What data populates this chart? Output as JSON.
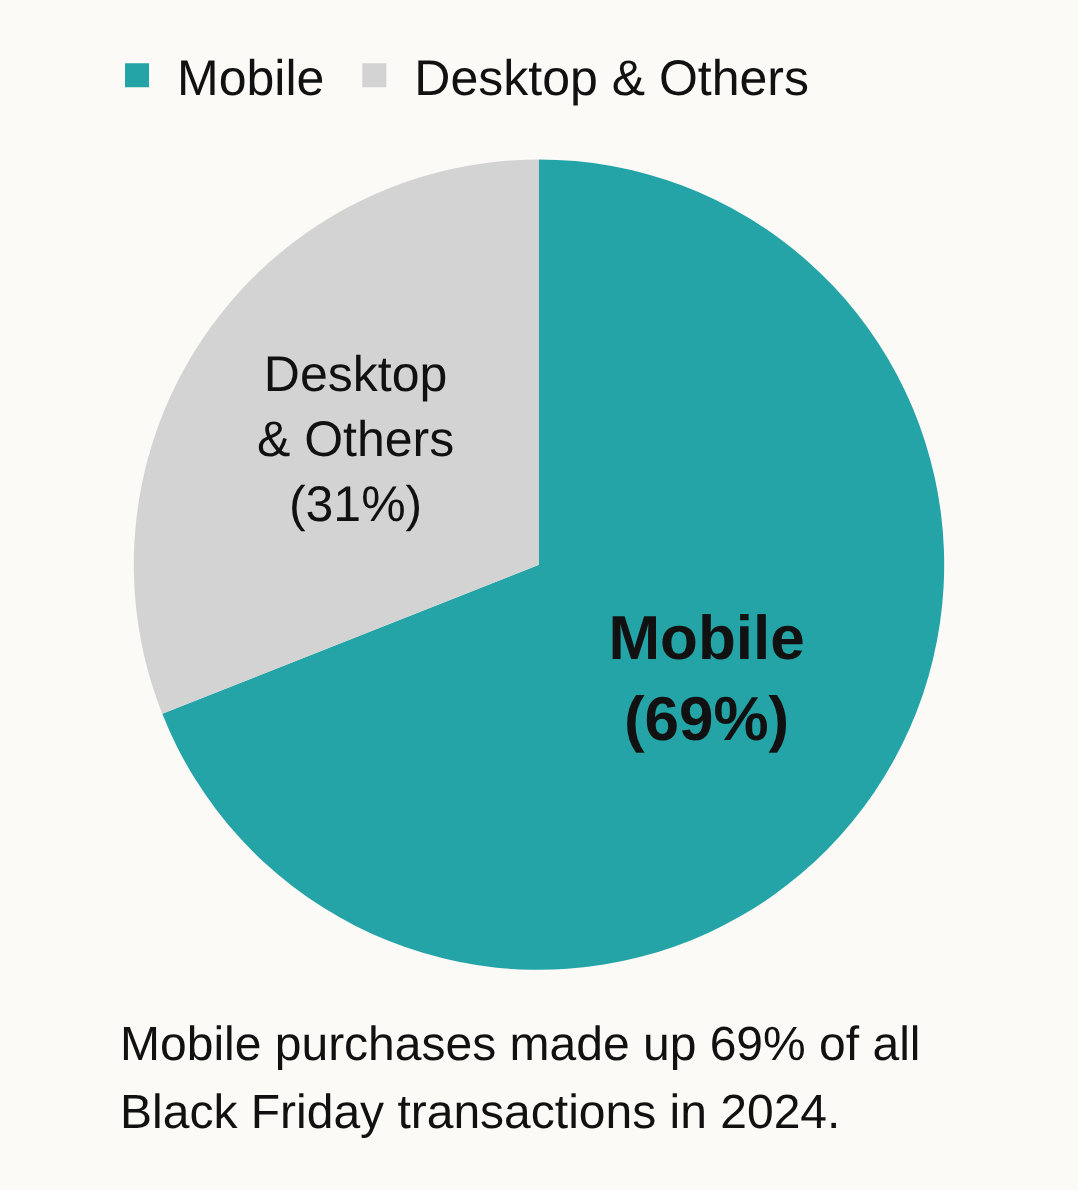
{
  "chart_data": {
    "type": "pie",
    "categories": [
      "Mobile",
      "Desktop & Others"
    ],
    "values": [
      69,
      31
    ],
    "colors": [
      "#24a4a7",
      "#d3d3d3"
    ],
    "value_labels": [
      "Mobile\n(69%)",
      "Desktop\n& Others\n(31%)"
    ],
    "legend": "top",
    "annotations": [
      "Mobile purchases made up 69% of all Black Friday transactions in 2024."
    ]
  }
}
